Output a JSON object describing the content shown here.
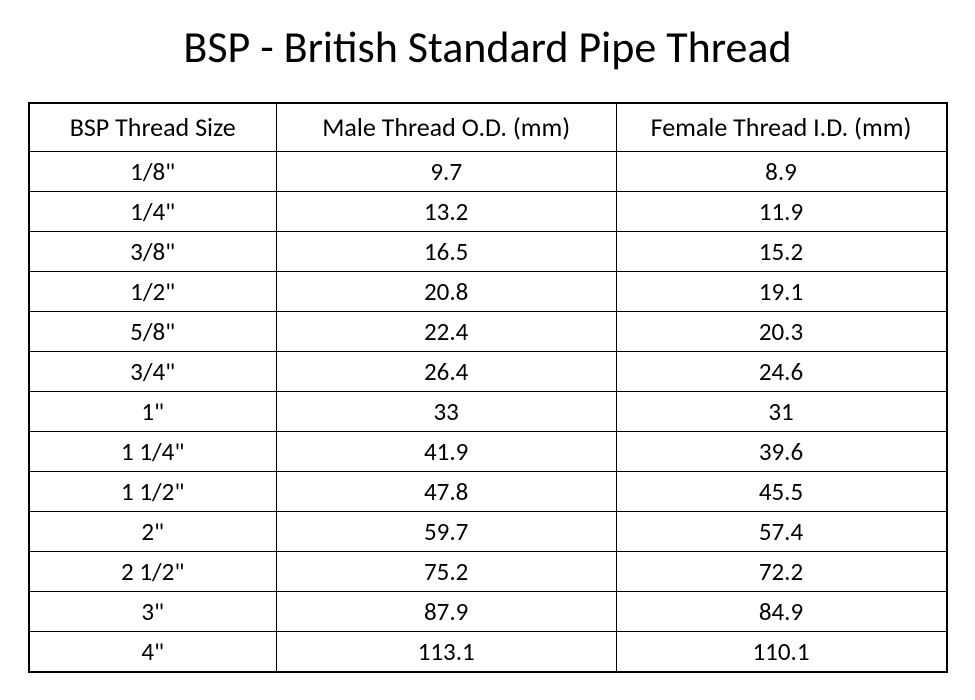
{
  "title": "BSP - British Standard Pipe Thread",
  "table": {
    "type": "table",
    "columns": [
      "BSP Thread Size",
      "Male Thread O.D. (mm)",
      "Female Thread I.D. (mm)"
    ],
    "rows": [
      [
        "1/8\"",
        "9.7",
        "8.9"
      ],
      [
        "1/4\"",
        "13.2",
        "11.9"
      ],
      [
        "3/8\"",
        "16.5",
        "15.2"
      ],
      [
        "1/2\"",
        "20.8",
        "19.1"
      ],
      [
        "5/8\"",
        "22.4",
        "20.3"
      ],
      [
        "3/4\"",
        "26.4",
        "24.6"
      ],
      [
        "1\"",
        "33",
        "31"
      ],
      [
        "1 1/4\"",
        "41.9",
        "39.6"
      ],
      [
        "1 1/2\"",
        "47.8",
        "45.5"
      ],
      [
        "2\"",
        "59.7",
        "57.4"
      ],
      [
        "2 1/2\"",
        "75.2",
        "72.2"
      ],
      [
        "3\"",
        "87.9",
        "84.9"
      ],
      [
        "4\"",
        "113.1",
        "110.1"
      ]
    ],
    "column_widths_pct": [
      27,
      37,
      36
    ],
    "header_fontsize": 26,
    "cell_fontsize": 25,
    "border_color": "#000000",
    "outer_border_width": 2,
    "inner_border_width": 1,
    "text_color": "#000000",
    "background_color": "#ffffff",
    "alignment": "center"
  },
  "title_style": {
    "fontsize": 44,
    "font_weight": "normal",
    "color": "#000000",
    "align": "center"
  }
}
